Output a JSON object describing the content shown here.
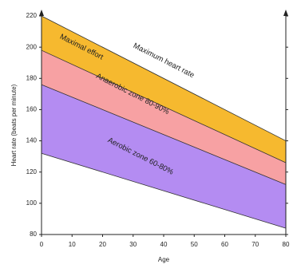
{
  "chart_data": {
    "type": "zones",
    "y_label": "Heart rate (beats per minute)",
    "x_label": "Age",
    "x": [
      0,
      80
    ],
    "xlim": [
      0,
      80
    ],
    "xticks": [
      0,
      10,
      20,
      30,
      40,
      50,
      60,
      70,
      80
    ],
    "ylim": [
      80,
      220
    ],
    "yticks": [
      80,
      100,
      120,
      140,
      160,
      180,
      200,
      220
    ],
    "series": [
      {
        "name": "Maximum heart rate",
        "color": "#222222",
        "values": [
          220,
          140
        ]
      },
      {
        "name": "Maximal effort",
        "color": "#f6b92f",
        "values": [
          198,
          126
        ]
      },
      {
        "name": "Anaerobic zone 80-90%",
        "color": "#f7a1a3",
        "values": [
          176,
          112
        ]
      },
      {
        "name": "Aerobic zone 60-80%",
        "color": "#b48cf2",
        "values": [
          132,
          84
        ]
      }
    ]
  }
}
